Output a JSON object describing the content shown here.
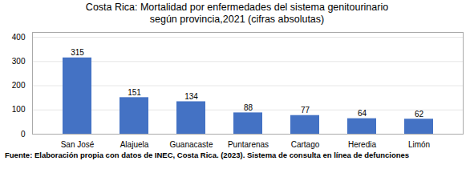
{
  "chart_data": {
    "type": "bar",
    "title": "Costa Rica: Mortalidad por enfermedades del sistema genitourinario",
    "subtitle": "según provincia,2021 (cifras absolutas)",
    "caption": "Fuente: Elaboración propia con datos de INEC, Costa Rica. (2023). Sistema de consulta en línea de defunciones",
    "categories": [
      "San José",
      "Alajuela",
      "Guanacaste",
      "Puntarenas",
      "Cartago",
      "Heredia",
      "Limón"
    ],
    "values": [
      315,
      151,
      134,
      88,
      77,
      64,
      62
    ],
    "color": "#4472C4",
    "ylim": [
      0,
      420
    ],
    "yticks": [
      0,
      100,
      200,
      300,
      400
    ],
    "grid": true,
    "data_labels": true
  }
}
